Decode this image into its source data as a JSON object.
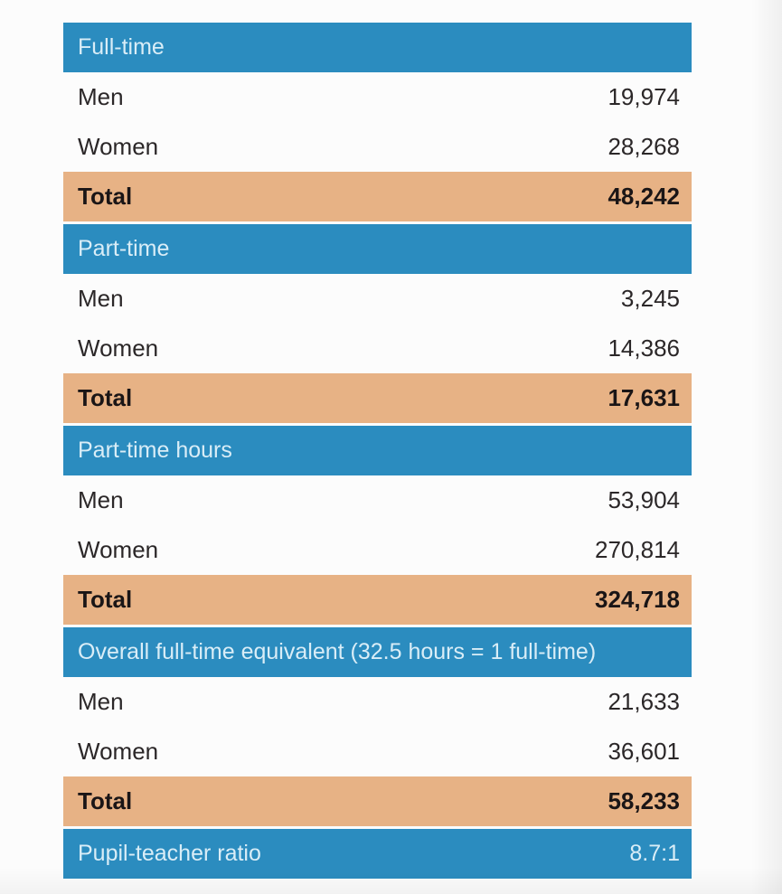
{
  "colors": {
    "header_background": "#2b8cbf",
    "header_text": "#d9edf7",
    "total_background": "#e7b285",
    "data_text": "#2b2728",
    "total_text": "#1a1516",
    "page_background": "#fcfcfc"
  },
  "table": {
    "sections": [
      {
        "header": {
          "label": "Full-time",
          "value": ""
        },
        "rows": [
          {
            "label": "Men",
            "value": "19,974"
          },
          {
            "label": "Women",
            "value": "28,268"
          }
        ],
        "total": {
          "label": "Total",
          "value": "48,242"
        }
      },
      {
        "header": {
          "label": "Part-time",
          "value": ""
        },
        "rows": [
          {
            "label": "Men",
            "value": "3,245"
          },
          {
            "label": "Women",
            "value": "14,386"
          }
        ],
        "total": {
          "label": "Total",
          "value": "17,631"
        }
      },
      {
        "header": {
          "label": "Part-time hours",
          "value": ""
        },
        "rows": [
          {
            "label": "Men",
            "value": "53,904"
          },
          {
            "label": "Women",
            "value": "270,814"
          }
        ],
        "total": {
          "label": "Total",
          "value": "324,718"
        }
      },
      {
        "header": {
          "label": "Overall full-time equivalent (32.5 hours = 1 full-time)",
          "value": ""
        },
        "rows": [
          {
            "label": "Men",
            "value": "21,633"
          },
          {
            "label": "Women",
            "value": "36,601"
          }
        ],
        "total": {
          "label": "Total",
          "value": "58,233"
        }
      },
      {
        "header": {
          "label": "Pupil-teacher ratio",
          "value": "8.7:1"
        },
        "rows": [],
        "total": null
      }
    ]
  }
}
